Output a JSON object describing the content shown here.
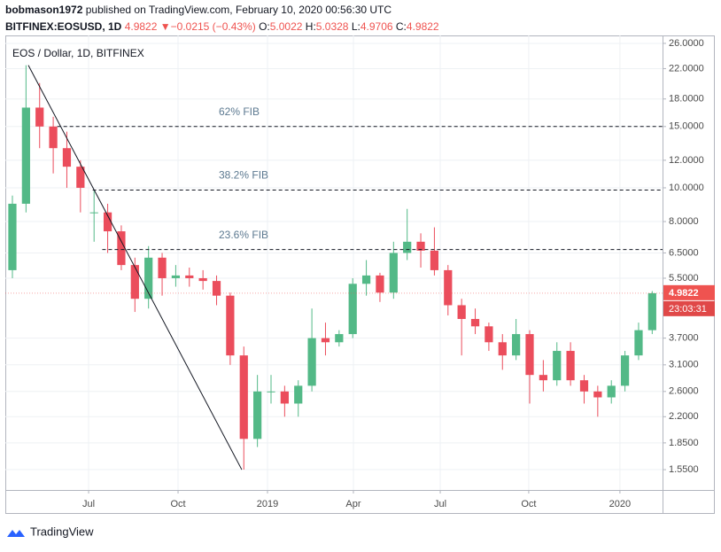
{
  "header": {
    "author": "bobmason1972",
    "published": "published on TradingView.com, February 10, 2020 00:56:30 UTC",
    "symbol": "BITFINEX:EOSUSD, 1D",
    "price": "4.9822",
    "arrow": "▼",
    "change": "−0.0215 (−0.43%)",
    "o_label": "O:",
    "o": "5.0022",
    "h_label": "H:",
    "h": "5.0328",
    "l_label": "L:",
    "l": "4.9706",
    "c_label": "C:",
    "c": "4.9822"
  },
  "chart_data": {
    "type": "candlestick",
    "legend": "EOS / Dollar, 1D, BITFINEX",
    "log_scale": true,
    "grid": true,
    "up_color": "#53b987",
    "down_color": "#eb4d5c",
    "xlim": [
      -0.52,
      47.76
    ],
    "xticks": [
      {
        "value": 5.6,
        "label": "Jul"
      },
      {
        "value": 12.17,
        "label": "Oct"
      },
      {
        "value": 18.74,
        "label": "2019"
      },
      {
        "value": 25.05,
        "label": "Apr"
      },
      {
        "value": 31.43,
        "label": "Jul"
      },
      {
        "value": 37.93,
        "label": "Oct"
      },
      {
        "value": 44.63,
        "label": "2020"
      }
    ],
    "ylim": [
      1.355,
      27.4
    ],
    "yticks": [
      {
        "value": 26,
        "label": "26.0000"
      },
      {
        "value": 22,
        "label": "22.0000"
      },
      {
        "value": 18,
        "label": "18.0000"
      },
      {
        "value": 15,
        "label": "15.0000"
      },
      {
        "value": 12,
        "label": "12.0000"
      },
      {
        "value": 10,
        "label": "10.0000"
      },
      {
        "value": 8,
        "label": "8.0000"
      },
      {
        "value": 6.5,
        "label": "6.5000"
      },
      {
        "value": 5.5,
        "label": "5.5000"
      },
      {
        "value": 3.7,
        "label": "3.7000"
      },
      {
        "value": 3.1,
        "label": "3.1000"
      },
      {
        "value": 2.6,
        "label": "2.6000"
      },
      {
        "value": 2.2,
        "label": "2.2000"
      },
      {
        "value": 1.85,
        "label": "1.8500"
      },
      {
        "value": 1.55,
        "label": "1.5500"
      }
    ],
    "last_price": 4.9822,
    "countdown": "23:03:31",
    "candles": [
      {
        "o": 5.8,
        "h": 9.5,
        "l": 5.5,
        "c": 9
      },
      {
        "o": 9,
        "h": 22.5,
        "l": 8.5,
        "c": 17
      },
      {
        "o": 17,
        "h": 20,
        "l": 13,
        "c": 15
      },
      {
        "o": 15,
        "h": 16,
        "l": 11,
        "c": 13
      },
      {
        "o": 13,
        "h": 14.5,
        "l": 10,
        "c": 11.5
      },
      {
        "o": 11.5,
        "h": 12,
        "l": 8.5,
        "c": 10
      },
      {
        "o": 8.5,
        "h": 9.8,
        "l": 7,
        "c": 8.5
      },
      {
        "o": 8.5,
        "h": 9,
        "l": 6.5,
        "c": 7.5
      },
      {
        "o": 7.5,
        "h": 7.8,
        "l": 5.8,
        "c": 6
      },
      {
        "o": 6,
        "h": 6.3,
        "l": 4.4,
        "c": 4.8
      },
      {
        "o": 4.8,
        "h": 6.8,
        "l": 4.5,
        "c": 6.3
      },
      {
        "o": 6.3,
        "h": 6.5,
        "l": 4.9,
        "c": 5.5
      },
      {
        "o": 5.5,
        "h": 6,
        "l": 5.2,
        "c": 5.6
      },
      {
        "o": 5.6,
        "h": 5.9,
        "l": 5.2,
        "c": 5.5
      },
      {
        "o": 5.5,
        "h": 5.8,
        "l": 5.1,
        "c": 5.4
      },
      {
        "o": 5.4,
        "h": 5.6,
        "l": 4.6,
        "c": 4.9
      },
      {
        "o": 4.9,
        "h": 5,
        "l": 3.1,
        "c": 3.3
      },
      {
        "o": 3.3,
        "h": 3.5,
        "l": 1.55,
        "c": 1.9
      },
      {
        "o": 1.9,
        "h": 2.9,
        "l": 1.8,
        "c": 2.6
      },
      {
        "o": 2.6,
        "h": 2.9,
        "l": 2.4,
        "c": 2.6
      },
      {
        "o": 2.6,
        "h": 2.7,
        "l": 2.2,
        "c": 2.4
      },
      {
        "o": 2.4,
        "h": 2.8,
        "l": 2.2,
        "c": 2.7
      },
      {
        "o": 2.7,
        "h": 4.5,
        "l": 2.6,
        "c": 3.7
      },
      {
        "o": 3.7,
        "h": 4.1,
        "l": 3.3,
        "c": 3.6
      },
      {
        "o": 3.6,
        "h": 3.9,
        "l": 3.5,
        "c": 3.8
      },
      {
        "o": 3.8,
        "h": 5.5,
        "l": 3.7,
        "c": 5.3
      },
      {
        "o": 5.3,
        "h": 6.2,
        "l": 4.9,
        "c": 5.6
      },
      {
        "o": 5.6,
        "h": 5.7,
        "l": 4.7,
        "c": 5
      },
      {
        "o": 5,
        "h": 7,
        "l": 4.8,
        "c": 6.5
      },
      {
        "o": 6.5,
        "h": 8.7,
        "l": 6.2,
        "c": 7
      },
      {
        "o": 7,
        "h": 7.4,
        "l": 5.9,
        "c": 6.6
      },
      {
        "o": 6.6,
        "h": 7.7,
        "l": 5.6,
        "c": 5.8
      },
      {
        "o": 5.8,
        "h": 6,
        "l": 4.3,
        "c": 4.6
      },
      {
        "o": 4.6,
        "h": 4.8,
        "l": 3.3,
        "c": 4.2
      },
      {
        "o": 4.2,
        "h": 4.5,
        "l": 3.8,
        "c": 4
      },
      {
        "o": 4,
        "h": 4.1,
        "l": 3.4,
        "c": 3.6
      },
      {
        "o": 3.6,
        "h": 3.8,
        "l": 3,
        "c": 3.3
      },
      {
        "o": 3.3,
        "h": 4.2,
        "l": 3.2,
        "c": 3.8
      },
      {
        "o": 3.8,
        "h": 3.9,
        "l": 2.4,
        "c": 2.9
      },
      {
        "o": 2.9,
        "h": 3.2,
        "l": 2.6,
        "c": 2.8
      },
      {
        "o": 2.8,
        "h": 3.6,
        "l": 2.7,
        "c": 3.4
      },
      {
        "o": 3.4,
        "h": 3.6,
        "l": 2.7,
        "c": 2.8
      },
      {
        "o": 2.8,
        "h": 2.9,
        "l": 2.4,
        "c": 2.6
      },
      {
        "o": 2.6,
        "h": 2.7,
        "l": 2.2,
        "c": 2.5
      },
      {
        "o": 2.5,
        "h": 2.8,
        "l": 2.4,
        "c": 2.7
      },
      {
        "o": 2.7,
        "h": 3.4,
        "l": 2.6,
        "c": 3.3
      },
      {
        "o": 3.3,
        "h": 4.1,
        "l": 3.2,
        "c": 3.9
      },
      {
        "o": 3.9,
        "h": 5.05,
        "l": 3.8,
        "c": 4.98
      }
    ],
    "fib_levels": [
      {
        "label": "62% FIB",
        "value": 15,
        "from": 3.3
      },
      {
        "label": "38.2% FIB",
        "value": 9.85,
        "from": 5.9
      },
      {
        "label": "23.6% FIB",
        "value": 6.65,
        "from": 6.6
      }
    ],
    "trendline": {
      "x": [
        1.17,
        16.85
      ],
      "y": [
        22.5,
        1.55
      ]
    }
  },
  "footer": {
    "brand": "TradingView"
  }
}
